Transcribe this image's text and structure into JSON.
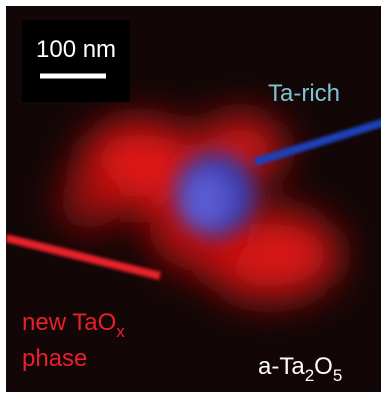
{
  "image": {
    "scale_bar": "100 nm",
    "ta_rich": "Ta-rich",
    "new_taox": {
      "text": "new TaO",
      "subscript": "x"
    },
    "phase": "phase",
    "a_ta2o5": {
      "parts": [
        "a-Ta",
        "2",
        "O",
        "5"
      ]
    }
  }
}
